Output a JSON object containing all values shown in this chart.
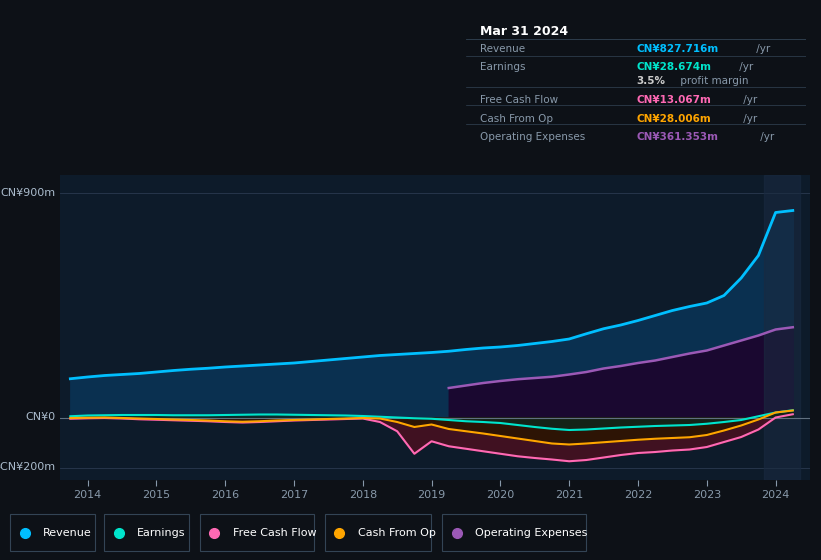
{
  "bg_color": "#0d1117",
  "plot_bg_color": "#0d1b2a",
  "ylim": [
    -250,
    970
  ],
  "xlim": [
    2013.6,
    2024.5
  ],
  "xticks": [
    2014,
    2015,
    2016,
    2017,
    2018,
    2019,
    2020,
    2021,
    2022,
    2023,
    2024
  ],
  "grid_color": "#2a3a50",
  "info_box_title": "Mar 31 2024",
  "info_rows": [
    {
      "label": "Revenue",
      "value": "CN¥827.716m",
      "suffix": " /yr",
      "vcolor": "#00bfff"
    },
    {
      "label": "Earnings",
      "value": "CN¥28.674m",
      "suffix": " /yr",
      "vcolor": "#00e5cc"
    },
    {
      "label": "",
      "value": "3.5%",
      "suffix": " profit margin",
      "vcolor": "#cccccc"
    },
    {
      "label": "Free Cash Flow",
      "value": "CN¥13.067m",
      "suffix": " /yr",
      "vcolor": "#ff69b4"
    },
    {
      "label": "Cash From Op",
      "value": "CN¥28.006m",
      "suffix": " /yr",
      "vcolor": "#ffa500"
    },
    {
      "label": "Operating Expenses",
      "value": "CN¥361.353m",
      "suffix": " /yr",
      "vcolor": "#9b59b6"
    }
  ],
  "revenue_x": [
    2013.75,
    2014.0,
    2014.25,
    2014.5,
    2014.75,
    2015.0,
    2015.25,
    2015.5,
    2015.75,
    2016.0,
    2016.25,
    2016.5,
    2016.75,
    2017.0,
    2017.25,
    2017.5,
    2017.75,
    2018.0,
    2018.25,
    2018.5,
    2018.75,
    2019.0,
    2019.25,
    2019.5,
    2019.75,
    2020.0,
    2020.25,
    2020.5,
    2020.75,
    2021.0,
    2021.25,
    2021.5,
    2021.75,
    2022.0,
    2022.25,
    2022.5,
    2022.75,
    2023.0,
    2023.25,
    2023.5,
    2023.75,
    2024.0,
    2024.25
  ],
  "revenue_y": [
    155,
    162,
    168,
    172,
    176,
    182,
    188,
    193,
    197,
    202,
    206,
    210,
    214,
    218,
    224,
    230,
    236,
    242,
    248,
    252,
    256,
    260,
    265,
    272,
    278,
    282,
    288,
    296,
    304,
    314,
    335,
    355,
    370,
    388,
    408,
    428,
    444,
    458,
    488,
    558,
    648,
    820,
    828
  ],
  "opex_x": [
    2019.25,
    2019.5,
    2019.75,
    2020.0,
    2020.25,
    2020.5,
    2020.75,
    2021.0,
    2021.25,
    2021.5,
    2021.75,
    2022.0,
    2022.25,
    2022.5,
    2022.75,
    2023.0,
    2023.25,
    2023.5,
    2023.75,
    2024.0,
    2024.25
  ],
  "opex_y": [
    118,
    128,
    138,
    146,
    153,
    158,
    163,
    172,
    182,
    196,
    206,
    218,
    228,
    242,
    256,
    268,
    288,
    308,
    328,
    352,
    361
  ],
  "earnings_x": [
    2013.75,
    2014.0,
    2014.25,
    2014.5,
    2014.75,
    2015.0,
    2015.25,
    2015.5,
    2015.75,
    2016.0,
    2016.25,
    2016.5,
    2016.75,
    2017.0,
    2017.25,
    2017.5,
    2017.75,
    2018.0,
    2018.25,
    2018.5,
    2018.75,
    2019.0,
    2019.25,
    2019.5,
    2019.75,
    2020.0,
    2020.25,
    2020.5,
    2020.75,
    2021.0,
    2021.25,
    2021.5,
    2021.75,
    2022.0,
    2022.25,
    2022.5,
    2022.75,
    2023.0,
    2023.25,
    2023.5,
    2023.75,
    2024.0,
    2024.25
  ],
  "earnings_y": [
    5,
    8,
    9,
    10,
    10,
    10,
    9,
    9,
    9,
    10,
    11,
    12,
    12,
    11,
    10,
    9,
    8,
    6,
    3,
    0,
    -3,
    -5,
    -10,
    -15,
    -18,
    -22,
    -30,
    -38,
    -45,
    -50,
    -48,
    -44,
    -40,
    -37,
    -34,
    -32,
    -30,
    -25,
    -18,
    -10,
    5,
    20,
    29
  ],
  "fcf_x": [
    2013.75,
    2014.0,
    2014.25,
    2014.5,
    2014.75,
    2015.0,
    2015.25,
    2015.5,
    2015.75,
    2016.0,
    2016.25,
    2016.5,
    2016.75,
    2017.0,
    2017.25,
    2017.5,
    2017.75,
    2018.0,
    2018.25,
    2018.5,
    2018.75,
    2019.0,
    2019.25,
    2019.5,
    2019.75,
    2020.0,
    2020.25,
    2020.5,
    2020.75,
    2021.0,
    2021.25,
    2021.5,
    2021.75,
    2022.0,
    2022.25,
    2022.5,
    2022.75,
    2023.0,
    2023.25,
    2023.5,
    2023.75,
    2024.0,
    2024.25
  ],
  "fcf_y": [
    -5,
    -3,
    -2,
    -4,
    -7,
    -9,
    -11,
    -13,
    -15,
    -18,
    -20,
    -18,
    -15,
    -12,
    -10,
    -8,
    -6,
    -4,
    -18,
    -55,
    -145,
    -95,
    -115,
    -125,
    -135,
    -145,
    -155,
    -162,
    -168,
    -175,
    -170,
    -160,
    -150,
    -142,
    -138,
    -132,
    -128,
    -118,
    -98,
    -78,
    -48,
    0,
    13
  ],
  "cfop_x": [
    2013.75,
    2014.0,
    2014.25,
    2014.5,
    2014.75,
    2015.0,
    2015.25,
    2015.5,
    2015.75,
    2016.0,
    2016.25,
    2016.5,
    2016.75,
    2017.0,
    2017.25,
    2017.5,
    2017.75,
    2018.0,
    2018.25,
    2018.5,
    2018.75,
    2019.0,
    2019.25,
    2019.5,
    2019.75,
    2020.0,
    2020.25,
    2020.5,
    2020.75,
    2021.0,
    2021.25,
    2021.5,
    2021.75,
    2022.0,
    2022.25,
    2022.5,
    2022.75,
    2023.0,
    2023.25,
    2023.5,
    2023.75,
    2024.0,
    2024.25
  ],
  "cfop_y": [
    -2,
    -1,
    0,
    -2,
    -4,
    -6,
    -8,
    -10,
    -12,
    -15,
    -17,
    -15,
    -12,
    -10,
    -8,
    -6,
    -4,
    -2,
    -4,
    -18,
    -38,
    -28,
    -46,
    -55,
    -64,
    -74,
    -84,
    -94,
    -104,
    -108,
    -104,
    -99,
    -94,
    -89,
    -85,
    -82,
    -79,
    -70,
    -52,
    -32,
    -8,
    20,
    28
  ],
  "legend_items": [
    {
      "label": "Revenue",
      "color": "#00bfff"
    },
    {
      "label": "Earnings",
      "color": "#00e5cc"
    },
    {
      "label": "Free Cash Flow",
      "color": "#ff69b4"
    },
    {
      "label": "Cash From Op",
      "color": "#ffa500"
    },
    {
      "label": "Operating Expenses",
      "color": "#9b59b6"
    }
  ]
}
